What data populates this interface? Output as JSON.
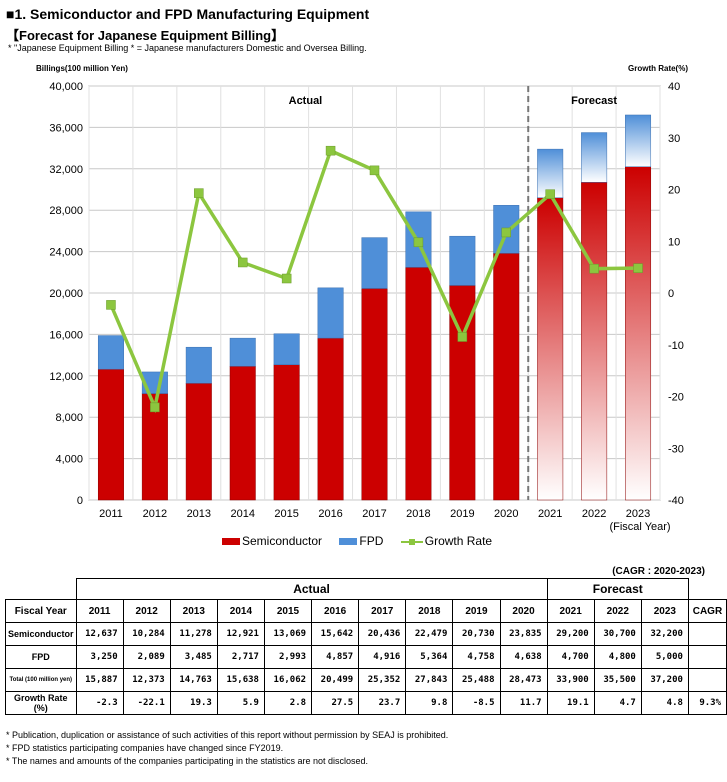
{
  "title": "■1. Semiconductor and FPD Manufacturing Equipment",
  "subtitle": "【Forecast for Japanese Equipment Billing】",
  "note": "* \"Japanese Equipment Billing * = Japanese manufacturers Domestic and Oversea Billing.",
  "chart_data": {
    "type": "bar",
    "stacked": true,
    "categories": [
      "2011",
      "2012",
      "2013",
      "2014",
      "2015",
      "2016",
      "2017",
      "2018",
      "2019",
      "2020",
      "2021",
      "2022",
      "2023"
    ],
    "series": [
      {
        "name": "Semiconductor",
        "values": [
          12637,
          10284,
          11278,
          12921,
          13069,
          15642,
          20436,
          22479,
          20730,
          23835,
          29200,
          30700,
          32200
        ],
        "color": "#cc0000"
      },
      {
        "name": "FPD",
        "values": [
          3250,
          2089,
          3485,
          2717,
          2993,
          4857,
          4916,
          5364,
          4758,
          4638,
          4700,
          4800,
          5000
        ],
        "color": "#4f8fd8"
      },
      {
        "name": "Growth Rate",
        "type": "line",
        "axis": "right",
        "values": [
          -2.3,
          -22.1,
          19.3,
          5.9,
          2.8,
          27.5,
          23.7,
          9.8,
          -8.5,
          11.7,
          19.1,
          4.7,
          4.8
        ],
        "color": "#8cc63f"
      }
    ],
    "ylabel": "Billings(100 million Yen)",
    "y2label": "Growth Rate(%)",
    "ylim": [
      0,
      40000
    ],
    "yticks": [
      "0",
      "4,000",
      "8,000",
      "12,000",
      "16,000",
      "20,000",
      "24,000",
      "28,000",
      "32,000",
      "36,000",
      "40,000"
    ],
    "y2lim": [
      -40,
      40
    ],
    "y2ticks": [
      "-40",
      "-30",
      "-20",
      "-10",
      "0",
      "10",
      "20",
      "30",
      "40"
    ],
    "xlabel_suffix": "(Fiscal Year)",
    "regions": [
      "Actual",
      "Forecast"
    ],
    "forecast_start": "2021",
    "legend_position": "bottom",
    "grid": true
  },
  "table": {
    "cagr_note": "(CAGR : 2020-2023)",
    "actual_label": "Actual",
    "forecast_label": "Forecast",
    "fiscal_year_label": "Fiscal Year",
    "cagr_label": "CAGR",
    "years": [
      "2011",
      "2012",
      "2013",
      "2014",
      "2015",
      "2016",
      "2017",
      "2018",
      "2019",
      "2020",
      "2021",
      "2022",
      "2023"
    ],
    "rows": [
      {
        "label": "Semiconductor",
        "values": [
          "12,637",
          "10,284",
          "11,278",
          "12,921",
          "13,069",
          "15,642",
          "20,436",
          "22,479",
          "20,730",
          "23,835",
          "29,200",
          "30,700",
          "32,200"
        ],
        "cagr": ""
      },
      {
        "label": "FPD",
        "values": [
          "3,250",
          "2,089",
          "3,485",
          "2,717",
          "2,993",
          "4,857",
          "4,916",
          "5,364",
          "4,758",
          "4,638",
          "4,700",
          "4,800",
          "5,000"
        ],
        "cagr": ""
      },
      {
        "label": "Total (100 million yen)",
        "values": [
          "15,887",
          "12,373",
          "14,763",
          "15,638",
          "16,062",
          "20,499",
          "25,352",
          "27,843",
          "25,488",
          "28,473",
          "33,900",
          "35,500",
          "37,200"
        ],
        "cagr": ""
      },
      {
        "label": "Growth Rate (%)",
        "values": [
          "-2.3",
          "-22.1",
          "19.3",
          "5.9",
          "2.8",
          "27.5",
          "23.7",
          "9.8",
          "-8.5",
          "11.7",
          "19.1",
          "4.7",
          "4.8"
        ],
        "cagr": "9.3%"
      }
    ]
  },
  "footnotes": [
    "* Publication, duplication or assistance of such activities of this report without permission by SEAJ is prohibited.",
    "* FPD statistics participating companies have changed since FY2019.",
    "* The names and amounts of the companies participating in the statistics are not disclosed."
  ]
}
